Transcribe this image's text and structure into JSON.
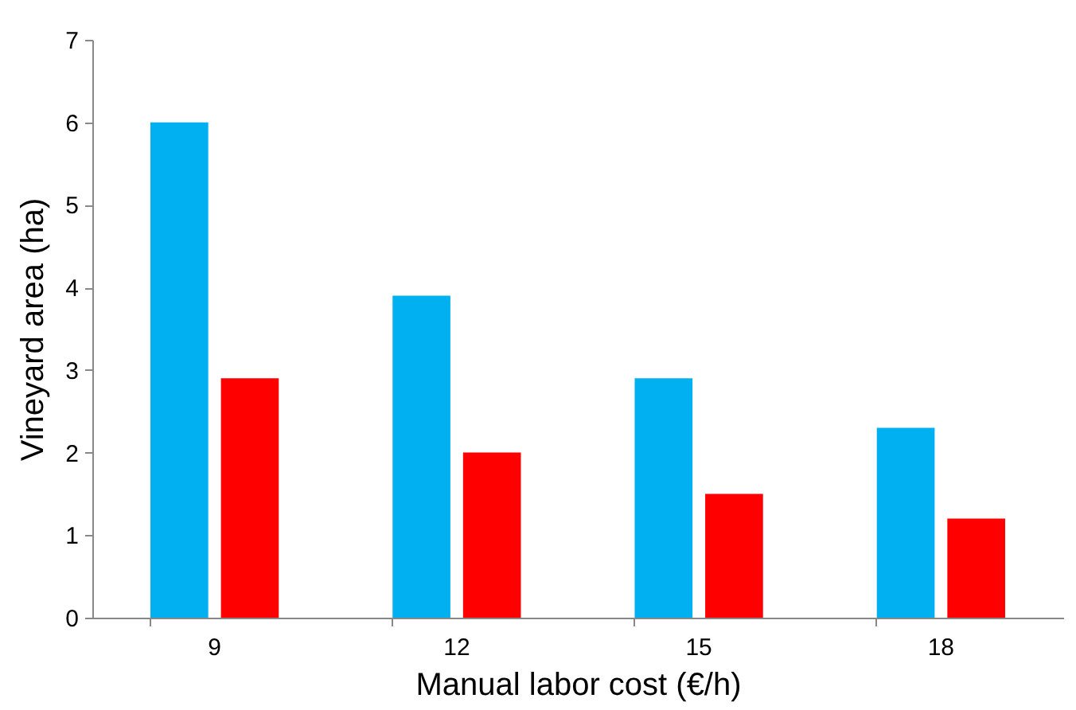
{
  "chart_data": {
    "type": "bar",
    "xlabel": "Manual labor cost (€/h)",
    "ylabel": "Vineyard area (ha)",
    "categories": [
      "9",
      "12",
      "15",
      "18"
    ],
    "series": [
      {
        "color": "#00b0f0",
        "values": [
          6.0,
          3.9,
          2.9,
          2.3
        ]
      },
      {
        "color": "#ff0000",
        "values": [
          2.9,
          2.0,
          1.5,
          1.2
        ]
      }
    ],
    "ylim": [
      0,
      7
    ],
    "yticks": [
      0,
      1,
      2,
      3,
      4,
      5,
      6,
      7
    ],
    "grid": false,
    "legend": false
  }
}
